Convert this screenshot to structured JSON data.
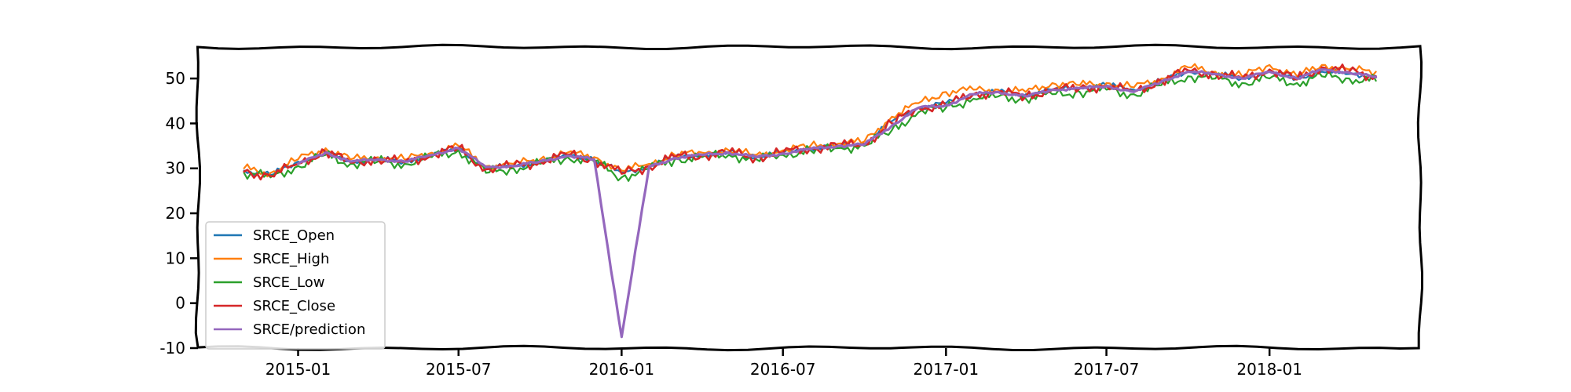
{
  "chart_data": {
    "type": "line",
    "title": "",
    "xlabel": "",
    "ylabel": "",
    "xlim": [
      "2014-09-10",
      "2018-06-20"
    ],
    "ylim": [
      -10,
      57
    ],
    "x_ticks": [
      "2015-01",
      "2015-07",
      "2016-01",
      "2016-07",
      "2017-01",
      "2017-07",
      "2018-01"
    ],
    "y_ticks": [
      -10,
      0,
      10,
      20,
      30,
      40,
      50
    ],
    "grid": false,
    "legend_position": "lower-left",
    "style": "xkcd",
    "x": [
      "2014-11-01",
      "2014-12-01",
      "2015-01-01",
      "2015-02-01",
      "2015-03-01",
      "2015-04-01",
      "2015-05-01",
      "2015-06-01",
      "2015-07-01",
      "2015-08-01",
      "2015-09-01",
      "2015-10-01",
      "2015-11-01",
      "2015-12-01",
      "2016-01-01",
      "2016-02-01",
      "2016-03-01",
      "2016-04-01",
      "2016-05-01",
      "2016-06-01",
      "2016-07-01",
      "2016-08-01",
      "2016-09-01",
      "2016-10-01",
      "2016-11-01",
      "2016-12-01",
      "2017-01-01",
      "2017-02-01",
      "2017-03-01",
      "2017-04-01",
      "2017-05-01",
      "2017-06-01",
      "2017-07-01",
      "2017-08-01",
      "2017-09-01",
      "2017-10-01",
      "2017-11-01",
      "2017-12-01",
      "2018-01-01",
      "2018-02-01",
      "2018-03-01",
      "2018-04-01",
      "2018-05-01"
    ],
    "series": [
      {
        "name": "SRCE_Open",
        "color": "#1f77b4",
        "values": [
          29.5,
          28.5,
          31.5,
          33.5,
          31.5,
          32.0,
          31.5,
          33.0,
          34.5,
          30.0,
          30.5,
          31.5,
          33.0,
          32.0,
          29.0,
          30.5,
          32.5,
          33.0,
          33.5,
          32.5,
          33.5,
          34.5,
          35.0,
          35.5,
          40.5,
          43.5,
          44.5,
          46.5,
          47.0,
          46.5,
          47.5,
          48.0,
          48.5,
          47.5,
          49.5,
          51.5,
          51.0,
          50.0,
          51.5,
          50.0,
          51.5,
          51.0,
          50.5
        ]
      },
      {
        "name": "SRCE_High",
        "color": "#ff7f0e",
        "values": [
          30.0,
          29.0,
          32.0,
          34.5,
          32.0,
          32.5,
          32.0,
          33.5,
          35.0,
          30.5,
          31.0,
          32.0,
          33.5,
          32.5,
          29.5,
          31.0,
          33.0,
          33.5,
          34.0,
          33.0,
          34.0,
          35.0,
          35.5,
          36.0,
          41.5,
          44.5,
          47.0,
          47.5,
          47.5,
          47.0,
          49.0,
          48.5,
          49.0,
          48.0,
          50.0,
          52.5,
          51.5,
          50.5,
          53.0,
          50.5,
          53.0,
          52.0,
          51.5
        ]
      },
      {
        "name": "SRCE_Low",
        "color": "#2ca02c",
        "values": [
          29.0,
          28.0,
          30.5,
          33.0,
          31.0,
          31.5,
          31.0,
          32.5,
          34.0,
          29.0,
          30.0,
          31.0,
          32.5,
          31.5,
          28.0,
          30.0,
          32.0,
          32.5,
          33.0,
          32.0,
          33.0,
          34.0,
          34.5,
          35.0,
          38.5,
          42.5,
          43.5,
          45.5,
          46.0,
          45.5,
          46.5,
          47.0,
          47.5,
          46.5,
          48.5,
          50.5,
          50.0,
          49.0,
          50.0,
          49.0,
          50.5,
          50.0,
          49.5
        ]
      },
      {
        "name": "SRCE_Close",
        "color": "#d62728",
        "values": [
          29.3,
          28.3,
          31.0,
          33.8,
          31.3,
          32.0,
          31.3,
          33.0,
          34.5,
          29.8,
          30.5,
          31.5,
          33.0,
          32.0,
          28.8,
          30.5,
          32.5,
          33.0,
          33.5,
          32.5,
          33.5,
          34.5,
          35.0,
          35.5,
          40.0,
          43.5,
          44.0,
          46.5,
          47.0,
          46.0,
          47.5,
          47.8,
          48.3,
          47.0,
          49.5,
          51.8,
          51.0,
          50.0,
          52.0,
          49.8,
          52.5,
          51.5,
          50.5
        ]
      },
      {
        "name": "SRCE/prediction",
        "color": "#9467bd",
        "values": [
          null,
          null,
          31.0,
          33.5,
          31.5,
          32.0,
          31.5,
          33.0,
          34.5,
          30.3,
          30.5,
          31.5,
          32.8,
          32.0,
          -7.5,
          30.3,
          32.3,
          33.0,
          33.5,
          32.5,
          33.3,
          34.3,
          35.0,
          35.3,
          39.5,
          43.5,
          44.0,
          46.5,
          47.0,
          46.0,
          47.5,
          47.8,
          48.3,
          47.0,
          49.3,
          51.5,
          51.0,
          50.0,
          51.5,
          50.0,
          52.0,
          51.3,
          50.3
        ]
      }
    ]
  }
}
